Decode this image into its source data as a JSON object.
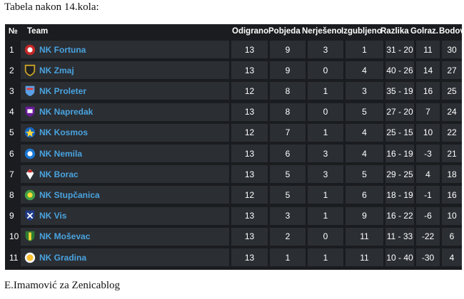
{
  "heading": "Tabela nakon 14.kola:",
  "footer": "E.Imamović za Zenicablog",
  "table": {
    "headers": {
      "rank": "№",
      "team": "Team",
      "played": "Odigrano",
      "wins": "Pobjeda",
      "draws": "Nerješeno",
      "losses": "Izgubljeno",
      "goals": "Razlika",
      "diff": "Golraz.",
      "points": "Bodovi"
    },
    "rows": [
      {
        "rank": "1",
        "team": "NK Fortuna",
        "played": "13",
        "wins": "9",
        "draws": "3",
        "losses": "1",
        "goals": "31 - 20",
        "diff": "11",
        "points": "30"
      },
      {
        "rank": "2",
        "team": "NK Zmaj",
        "played": "13",
        "wins": "9",
        "draws": "0",
        "losses": "4",
        "goals": "40 - 26",
        "diff": "14",
        "points": "27"
      },
      {
        "rank": "3",
        "team": "NK Proleter",
        "played": "12",
        "wins": "8",
        "draws": "1",
        "losses": "3",
        "goals": "35 - 19",
        "diff": "16",
        "points": "25"
      },
      {
        "rank": "4",
        "team": "NK Napredak",
        "played": "13",
        "wins": "8",
        "draws": "0",
        "losses": "5",
        "goals": "27 - 20",
        "diff": "7",
        "points": "24"
      },
      {
        "rank": "5",
        "team": "NK Kosmos",
        "played": "12",
        "wins": "7",
        "draws": "1",
        "losses": "4",
        "goals": "25 - 15",
        "diff": "10",
        "points": "22"
      },
      {
        "rank": "6",
        "team": "NK Nemila",
        "played": "13",
        "wins": "6",
        "draws": "3",
        "losses": "4",
        "goals": "16 - 19",
        "diff": "-3",
        "points": "21"
      },
      {
        "rank": "7",
        "team": "NK Borac",
        "played": "13",
        "wins": "5",
        "draws": "3",
        "losses": "5",
        "goals": "29 - 25",
        "diff": "4",
        "points": "18"
      },
      {
        "rank": "8",
        "team": "NK Stupčanica",
        "played": "12",
        "wins": "5",
        "draws": "1",
        "losses": "6",
        "goals": "18 - 19",
        "diff": "-1",
        "points": "16"
      },
      {
        "rank": "9",
        "team": "NK Vis",
        "played": "13",
        "wins": "3",
        "draws": "1",
        "losses": "9",
        "goals": "16 - 22",
        "diff": "-6",
        "points": "10"
      },
      {
        "rank": "10",
        "team": "NK Moševac",
        "played": "13",
        "wins": "2",
        "draws": "0",
        "losses": "11",
        "goals": "11 - 33",
        "diff": "-22",
        "points": "6"
      },
      {
        "rank": "11",
        "team": "NK Gradina",
        "played": "13",
        "wins": "1",
        "draws": "1",
        "losses": "11",
        "goals": "10 - 40",
        "diff": "-30",
        "points": "4"
      }
    ],
    "badges": [
      "fortuna-crest-icon",
      "zmaj-crest-icon",
      "proleter-crest-icon",
      "napredak-crest-icon",
      "kosmos-crest-icon",
      "nemila-crest-icon",
      "borac-crest-icon",
      "stupcanica-crest-icon",
      "vis-crest-icon",
      "mosevac-crest-icon",
      "gradina-crest-icon"
    ],
    "colors": {
      "background": "#1a1c1f",
      "cell": "#2b2e33",
      "team_link": "#4aa3df"
    }
  }
}
